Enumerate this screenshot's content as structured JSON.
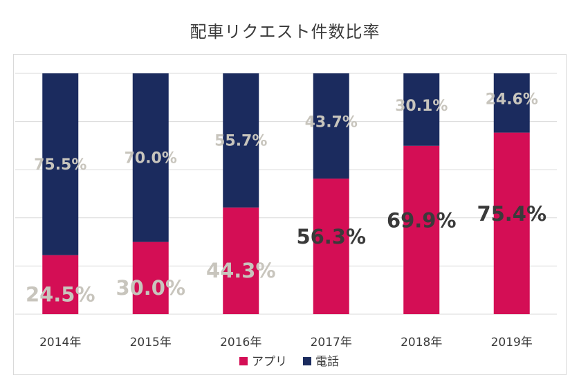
{
  "chart_data": {
    "type": "bar",
    "title": "配車リクエスト件数比率",
    "xlabel": "",
    "ylabel": "",
    "ylim": [
      0,
      100
    ],
    "categories": [
      "2014年",
      "2015年",
      "2016年",
      "2017年",
      "2018年",
      "2019年"
    ],
    "series": [
      {
        "name": "アプリ",
        "color": "#d40e55",
        "values": [
          24.5,
          30.0,
          44.3,
          56.3,
          69.9,
          75.4
        ],
        "labels": [
          "24.5%",
          "30.0%",
          "44.3%",
          "56.3%",
          "69.9%",
          "75.4%"
        ],
        "label_colors": [
          "#c8c5bd",
          "#c8c5bd",
          "#c8c5bd",
          "#3a3a3a",
          "#3a3a3a",
          "#3a3a3a"
        ]
      },
      {
        "name": "電話",
        "color": "#1b2b5e",
        "values": [
          75.5,
          70.0,
          55.7,
          43.7,
          30.1,
          24.6
        ],
        "labels": [
          "75.5%",
          "70.0%",
          "55.7%",
          "43.7%",
          "30.1%",
          "24.6%"
        ],
        "label_colors": [
          "#c8c5bd",
          "#c8c5bd",
          "#c8c5bd",
          "#c8c5bd",
          "#c8c5bd",
          "#c8c5bd"
        ]
      }
    ],
    "stacked": true,
    "grid": true,
    "legend_position": "bottom"
  }
}
